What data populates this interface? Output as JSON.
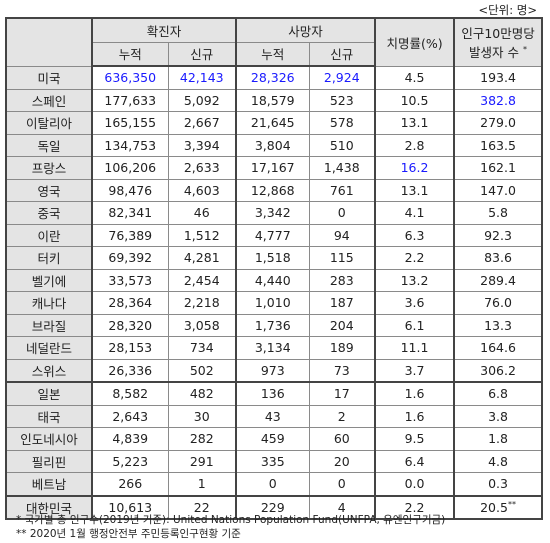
{
  "unit_label": "<단위: 명>",
  "headers": {
    "confirmed": "확진자",
    "deaths": "사망자",
    "cfr": "치명률(%)",
    "per100k_line1": "인구10만명당",
    "per100k_line2": "발생자 수",
    "per100k_mark": "*",
    "cumulative": "누적",
    "new": "신규"
  },
  "rows": [
    {
      "country": "미국",
      "conf_cum": "636,350",
      "conf_new": "42,143",
      "death_cum": "28,326",
      "death_new": "2,924",
      "cfr": "4.5",
      "per100k": "193.4",
      "mark": ""
    },
    {
      "country": "스페인",
      "conf_cum": "177,633",
      "conf_new": "5,092",
      "death_cum": "18,579",
      "death_new": "523",
      "cfr": "10.5",
      "per100k": "382.8",
      "mark": ""
    },
    {
      "country": "이탈리아",
      "conf_cum": "165,155",
      "conf_new": "2,667",
      "death_cum": "21,645",
      "death_new": "578",
      "cfr": "13.1",
      "per100k": "279.0",
      "mark": ""
    },
    {
      "country": "독일",
      "conf_cum": "134,753",
      "conf_new": "3,394",
      "death_cum": "3,804",
      "death_new": "510",
      "cfr": "2.8",
      "per100k": "163.5",
      "mark": ""
    },
    {
      "country": "프랑스",
      "conf_cum": "106,206",
      "conf_new": "2,633",
      "death_cum": "17,167",
      "death_new": "1,438",
      "cfr": "16.2",
      "per100k": "162.1",
      "mark": ""
    },
    {
      "country": "영국",
      "conf_cum": "98,476",
      "conf_new": "4,603",
      "death_cum": "12,868",
      "death_new": "761",
      "cfr": "13.1",
      "per100k": "147.0",
      "mark": ""
    },
    {
      "country": "중국",
      "conf_cum": "82,341",
      "conf_new": "46",
      "death_cum": "3,342",
      "death_new": "0",
      "cfr": "4.1",
      "per100k": "5.8",
      "mark": ""
    },
    {
      "country": "이란",
      "conf_cum": "76,389",
      "conf_new": "1,512",
      "death_cum": "4,777",
      "death_new": "94",
      "cfr": "6.3",
      "per100k": "92.3",
      "mark": ""
    },
    {
      "country": "터키",
      "conf_cum": "69,392",
      "conf_new": "4,281",
      "death_cum": "1,518",
      "death_new": "115",
      "cfr": "2.2",
      "per100k": "83.6",
      "mark": ""
    },
    {
      "country": "벨기에",
      "conf_cum": "33,573",
      "conf_new": "2,454",
      "death_cum": "4,440",
      "death_new": "283",
      "cfr": "13.2",
      "per100k": "289.4",
      "mark": ""
    },
    {
      "country": "캐나다",
      "conf_cum": "28,364",
      "conf_new": "2,218",
      "death_cum": "1,010",
      "death_new": "187",
      "cfr": "3.6",
      "per100k": "76.0",
      "mark": ""
    },
    {
      "country": "브라질",
      "conf_cum": "28,320",
      "conf_new": "3,058",
      "death_cum": "1,736",
      "death_new": "204",
      "cfr": "6.1",
      "per100k": "13.3",
      "mark": ""
    },
    {
      "country": "네덜란드",
      "conf_cum": "28,153",
      "conf_new": "734",
      "death_cum": "3,134",
      "death_new": "189",
      "cfr": "11.1",
      "per100k": "164.6",
      "mark": ""
    },
    {
      "country": "스위스",
      "conf_cum": "26,336",
      "conf_new": "502",
      "death_cum": "973",
      "death_new": "73",
      "cfr": "3.7",
      "per100k": "306.2",
      "mark": ""
    },
    {
      "country": "일본",
      "conf_cum": "8,582",
      "conf_new": "482",
      "death_cum": "136",
      "death_new": "17",
      "cfr": "1.6",
      "per100k": "6.8",
      "mark": ""
    },
    {
      "country": "태국",
      "conf_cum": "2,643",
      "conf_new": "30",
      "death_cum": "43",
      "death_new": "2",
      "cfr": "1.6",
      "per100k": "3.8",
      "mark": ""
    },
    {
      "country": "인도네시아",
      "conf_cum": "4,839",
      "conf_new": "282",
      "death_cum": "459",
      "death_new": "60",
      "cfr": "9.5",
      "per100k": "1.8",
      "mark": ""
    },
    {
      "country": "필리핀",
      "conf_cum": "5,223",
      "conf_new": "291",
      "death_cum": "335",
      "death_new": "20",
      "cfr": "6.4",
      "per100k": "4.8",
      "mark": ""
    },
    {
      "country": "베트남",
      "conf_cum": "266",
      "conf_new": "1",
      "death_cum": "0",
      "death_new": "0",
      "cfr": "0.0",
      "per100k": "0.3",
      "mark": ""
    },
    {
      "country": "대한민국",
      "conf_cum": "10,613",
      "conf_new": "22",
      "death_cum": "229",
      "death_new": "4",
      "cfr": "2.2",
      "per100k": "20.5",
      "mark": "**"
    }
  ],
  "highlight_color": "#1a1aff",
  "notes": [
    "* 국가별 총 인구수(2019년 기준): United Nations Population Fund(UNFPA, 유엔인구기금)",
    "** 2020년 1월 행정안전부 주민등록인구현황 기준"
  ]
}
